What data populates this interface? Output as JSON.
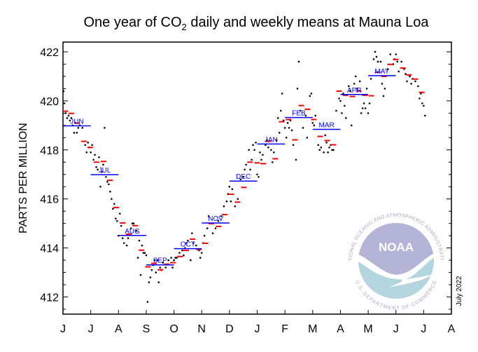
{
  "chart_data": {
    "type": "scatter",
    "title_prefix": "One year of CO",
    "title_sub": "2",
    "title_suffix": " daily and weekly means at Mauna Loa",
    "ylabel": "PARTS PER MILLION",
    "xlabel": "",
    "ylim": [
      411.3,
      422.4
    ],
    "xlim": [
      0,
      14
    ],
    "yticks": [
      "412",
      "414",
      "416",
      "418",
      "420",
      "422"
    ],
    "ytick_values": [
      412,
      414,
      416,
      418,
      420,
      422
    ],
    "xtick_labels": [
      "J",
      "J",
      "A",
      "S",
      "O",
      "N",
      "D",
      "J",
      "F",
      "M",
      "A",
      "M",
      "J",
      "J",
      "A"
    ],
    "date_note": "July 2022",
    "colors": {
      "daily": "#000000",
      "weekly": "#ff0000",
      "monthly": "#0000ff"
    },
    "monthly_means": [
      {
        "label": "JUN",
        "value": 418.98
      },
      {
        "label": "JUL",
        "value": 416.99
      },
      {
        "label": "AUG",
        "value": 414.51
      },
      {
        "label": "SEP",
        "value": 413.31
      },
      {
        "label": "OCT",
        "value": 413.97
      },
      {
        "label": "NOV",
        "value": 415.02
      },
      {
        "label": "DEC",
        "value": 416.73
      },
      {
        "label": "JAN",
        "value": 418.24
      },
      {
        "label": "FEB",
        "value": 419.32
      },
      {
        "label": "MAR",
        "value": 418.84
      },
      {
        "label": "APR",
        "value": 420.26
      },
      {
        "label": "MAY",
        "value": 421.03
      }
    ],
    "weekly_means": [
      [
        0.08,
        419.58
      ],
      [
        0.3,
        419.49
      ],
      [
        0.51,
        419.09
      ],
      [
        0.76,
        418.35
      ],
      [
        0.98,
        418.1
      ],
      [
        1.21,
        417.5
      ],
      [
        1.46,
        417.53
      ],
      [
        1.69,
        416.76
      ],
      [
        1.92,
        415.65
      ],
      [
        2.15,
        415.02
      ],
      [
        2.37,
        414.56
      ],
      [
        2.6,
        414.91
      ],
      [
        2.83,
        413.91
      ],
      [
        3.06,
        413.23
      ],
      [
        3.28,
        413.37
      ],
      [
        3.51,
        413.11
      ],
      [
        3.74,
        413.34
      ],
      [
        3.96,
        413.4
      ],
      [
        4.22,
        413.65
      ],
      [
        4.44,
        413.9
      ],
      [
        4.67,
        414.36
      ],
      [
        4.9,
        413.94
      ],
      [
        5.13,
        414.19
      ],
      [
        5.35,
        414.99
      ],
      [
        5.61,
        414.88
      ],
      [
        5.83,
        415.36
      ],
      [
        6.06,
        416.19
      ],
      [
        6.29,
        415.87
      ],
      [
        6.52,
        416.47
      ],
      [
        6.74,
        417.5
      ],
      [
        7.0,
        417.47
      ],
      [
        7.22,
        417.44
      ],
      [
        7.4,
        418.35
      ],
      [
        7.65,
        417.64
      ],
      [
        7.88,
        419.15
      ],
      [
        8.13,
        419.24
      ],
      [
        8.36,
        418.41
      ],
      [
        8.59,
        419.81
      ],
      [
        8.81,
        419.66
      ],
      [
        9.04,
        419.24
      ],
      [
        9.27,
        418.55
      ],
      [
        9.52,
        418.38
      ],
      [
        9.75,
        418.21
      ],
      [
        9.95,
        420.4
      ],
      [
        10.18,
        420.23
      ],
      [
        10.43,
        420.18
      ],
      [
        10.66,
        420.4
      ],
      [
        10.88,
        420.23
      ],
      [
        11.11,
        420.21
      ],
      [
        11.34,
        421.17
      ],
      [
        11.57,
        421.0
      ],
      [
        11.79,
        421.49
      ],
      [
        11.99,
        421.69
      ],
      [
        12.25,
        421.34
      ],
      [
        12.47,
        421.06
      ],
      [
        12.7,
        420.89
      ],
      [
        12.93,
        420.35
      ]
    ],
    "daily_values": [
      [
        0.02,
        420.4
      ],
      [
        0.05,
        419.9
      ],
      [
        0.1,
        419.5
      ],
      [
        0.15,
        419.3
      ],
      [
        0.2,
        419.4
      ],
      [
        0.25,
        419.2
      ],
      [
        0.3,
        419.3
      ],
      [
        0.35,
        419.0
      ],
      [
        0.4,
        418.7
      ],
      [
        0.45,
        419.1
      ],
      [
        0.5,
        418.7
      ],
      [
        0.55,
        418.9
      ],
      [
        0.6,
        419.0
      ],
      [
        0.7,
        418.9
      ],
      [
        0.8,
        418.2
      ],
      [
        0.85,
        417.9
      ],
      [
        0.9,
        418.3
      ],
      [
        0.95,
        418.1
      ],
      [
        1.0,
        417.9
      ],
      [
        1.05,
        418.2
      ],
      [
        1.1,
        417.6
      ],
      [
        1.15,
        417.8
      ],
      [
        1.2,
        417.3
      ],
      [
        1.25,
        417.2
      ],
      [
        1.3,
        417.7
      ],
      [
        1.35,
        416.5
      ],
      [
        1.4,
        417.1
      ],
      [
        1.45,
        417.4
      ],
      [
        1.5,
        418.9
      ],
      [
        1.55,
        416.9
      ],
      [
        1.6,
        416.7
      ],
      [
        1.65,
        416.6
      ],
      [
        1.7,
        416.3
      ],
      [
        1.75,
        416.0
      ],
      [
        1.8,
        415.6
      ],
      [
        1.85,
        415.8
      ],
      [
        1.9,
        415.2
      ],
      [
        1.95,
        415.1
      ],
      [
        2.0,
        414.5
      ],
      [
        2.05,
        415.4
      ],
      [
        2.1,
        414.9
      ],
      [
        2.15,
        414.4
      ],
      [
        2.2,
        414.2
      ],
      [
        2.3,
        414.1
      ],
      [
        2.35,
        414.4
      ],
      [
        2.45,
        414.8
      ],
      [
        2.5,
        415.0
      ],
      [
        2.55,
        415.0
      ],
      [
        2.65,
        414.7
      ],
      [
        2.7,
        413.6
      ],
      [
        2.75,
        414.3
      ],
      [
        2.8,
        412.9
      ],
      [
        2.85,
        414.1
      ],
      [
        2.9,
        413.8
      ],
      [
        2.95,
        413.8
      ],
      [
        3.0,
        413.7
      ],
      [
        3.05,
        411.8
      ],
      [
        3.1,
        412.6
      ],
      [
        3.15,
        412.8
      ],
      [
        3.2,
        413.1
      ],
      [
        3.25,
        413.3
      ],
      [
        3.3,
        413.5
      ],
      [
        3.35,
        413.0
      ],
      [
        3.4,
        413.5
      ],
      [
        3.45,
        412.6
      ],
      [
        3.5,
        413.2
      ],
      [
        3.55,
        413.1
      ],
      [
        3.6,
        413.4
      ],
      [
        3.7,
        413.2
      ],
      [
        3.8,
        413.5
      ],
      [
        3.9,
        413.6
      ],
      [
        3.95,
        413.2
      ],
      [
        4.0,
        413.5
      ],
      [
        4.05,
        413.6
      ],
      [
        4.1,
        413.6
      ],
      [
        4.2,
        413.8
      ],
      [
        4.3,
        413.9
      ],
      [
        4.35,
        413.7
      ],
      [
        4.4,
        414.0
      ],
      [
        4.45,
        414.2
      ],
      [
        4.5,
        414.3
      ],
      [
        4.6,
        413.5
      ],
      [
        4.65,
        414.6
      ],
      [
        4.7,
        414.2
      ],
      [
        4.8,
        414.1
      ],
      [
        4.9,
        413.9
      ],
      [
        4.95,
        413.6
      ],
      [
        5.0,
        413.8
      ],
      [
        5.05,
        414.2
      ],
      [
        5.1,
        414.5
      ],
      [
        5.2,
        414.8
      ],
      [
        5.25,
        415.3
      ],
      [
        5.3,
        415.0
      ],
      [
        5.4,
        414.6
      ],
      [
        5.5,
        414.8
      ],
      [
        5.6,
        415.1
      ],
      [
        5.7,
        415.3
      ],
      [
        5.8,
        415.7
      ],
      [
        5.9,
        415.9
      ],
      [
        5.95,
        416.2
      ],
      [
        6.0,
        416.5
      ],
      [
        6.05,
        415.9
      ],
      [
        6.1,
        416.4
      ],
      [
        6.2,
        415.7
      ],
      [
        6.3,
        416.0
      ],
      [
        6.4,
        416.8
      ],
      [
        6.5,
        416.9
      ],
      [
        6.55,
        417.2
      ],
      [
        6.6,
        417.4
      ],
      [
        6.7,
        418.0
      ],
      [
        6.75,
        417.2
      ],
      [
        6.8,
        417.6
      ],
      [
        6.85,
        418.2
      ],
      [
        6.9,
        418.0
      ],
      [
        6.95,
        418.3
      ],
      [
        7.0,
        417.0
      ],
      [
        7.05,
        416.9
      ],
      [
        7.1,
        417.9
      ],
      [
        7.15,
        417.6
      ],
      [
        7.2,
        417.8
      ],
      [
        7.3,
        418.2
      ],
      [
        7.35,
        418.4
      ],
      [
        7.4,
        418.1
      ],
      [
        7.5,
        418.0
      ],
      [
        7.55,
        417.5
      ],
      [
        7.6,
        417.9
      ],
      [
        7.7,
        418.4
      ],
      [
        7.75,
        419.3
      ],
      [
        7.8,
        418.7
      ],
      [
        7.85,
        419.6
      ],
      [
        7.9,
        420.3
      ],
      [
        7.95,
        419.2
      ],
      [
        8.0,
        418.9
      ],
      [
        8.05,
        418.5
      ],
      [
        8.1,
        419.1
      ],
      [
        8.15,
        418.9
      ],
      [
        8.2,
        419.2
      ],
      [
        8.25,
        418.8
      ],
      [
        8.3,
        418.2
      ],
      [
        8.4,
        417.6
      ],
      [
        8.45,
        420.5
      ],
      [
        8.5,
        421.6
      ],
      [
        8.55,
        419.6
      ],
      [
        8.65,
        418.9
      ],
      [
        8.75,
        419.4
      ],
      [
        8.8,
        418.5
      ],
      [
        8.9,
        420.2
      ],
      [
        8.95,
        420.3
      ],
      [
        9.0,
        419.1
      ],
      [
        9.05,
        419.0
      ],
      [
        9.1,
        419.4
      ],
      [
        9.2,
        418.2
      ],
      [
        9.25,
        418.0
      ],
      [
        9.3,
        418.1
      ],
      [
        9.4,
        417.9
      ],
      [
        9.45,
        418.6
      ],
      [
        9.5,
        418.3
      ],
      [
        9.55,
        417.9
      ],
      [
        9.6,
        418.1
      ],
      [
        9.65,
        418.2
      ],
      [
        9.7,
        418.0
      ],
      [
        9.75,
        418.0
      ],
      [
        9.85,
        419.6
      ],
      [
        9.95,
        420.1
      ],
      [
        10.0,
        420.0
      ],
      [
        10.05,
        419.5
      ],
      [
        10.1,
        420.3
      ],
      [
        10.15,
        419.8
      ],
      [
        10.2,
        419.3
      ],
      [
        10.3,
        420.6
      ],
      [
        10.35,
        420.4
      ],
      [
        10.4,
        419.0
      ],
      [
        10.5,
        420.7
      ],
      [
        10.55,
        421.0
      ],
      [
        10.6,
        420.5
      ],
      [
        10.7,
        420.8
      ],
      [
        10.75,
        419.5
      ],
      [
        10.8,
        419.7
      ],
      [
        10.85,
        419.9
      ],
      [
        10.9,
        419.7
      ],
      [
        10.95,
        420.5
      ],
      [
        11.0,
        419.5
      ],
      [
        11.05,
        419.9
      ],
      [
        11.1,
        420.9
      ],
      [
        11.2,
        421.7
      ],
      [
        11.25,
        422.0
      ],
      [
        11.3,
        421.8
      ],
      [
        11.35,
        421.6
      ],
      [
        11.45,
        421.6
      ],
      [
        11.5,
        420.7
      ],
      [
        11.55,
        420.2
      ],
      [
        11.6,
        420.5
      ],
      [
        11.7,
        421.3
      ],
      [
        11.8,
        421.9
      ],
      [
        11.9,
        421.5
      ],
      [
        11.95,
        421.7
      ],
      [
        12.0,
        421.9
      ],
      [
        12.05,
        421.6
      ],
      [
        12.1,
        421.2
      ],
      [
        12.2,
        421.6
      ],
      [
        12.3,
        421.3
      ],
      [
        12.35,
        421.1
      ],
      [
        12.4,
        420.8
      ],
      [
        12.5,
        421.0
      ],
      [
        12.55,
        420.7
      ],
      [
        12.6,
        420.9
      ],
      [
        12.7,
        420.8
      ],
      [
        12.8,
        420.6
      ],
      [
        12.85,
        420.1
      ],
      [
        12.9,
        420.3
      ],
      [
        12.95,
        419.9
      ],
      [
        13.0,
        419.8
      ],
      [
        13.05,
        419.4
      ]
    ]
  },
  "logo": {
    "name": "NOAA",
    "ring_top": "NATIONAL OCEANIC AND ATMOSPHERIC ADMINISTRATION",
    "ring_bottom": "U.S. DEPARTMENT OF COMMERCE",
    "colors": {
      "sky": "#b4b4d6",
      "sea": "#b3d5dd",
      "text": "#a9a9c4"
    }
  }
}
